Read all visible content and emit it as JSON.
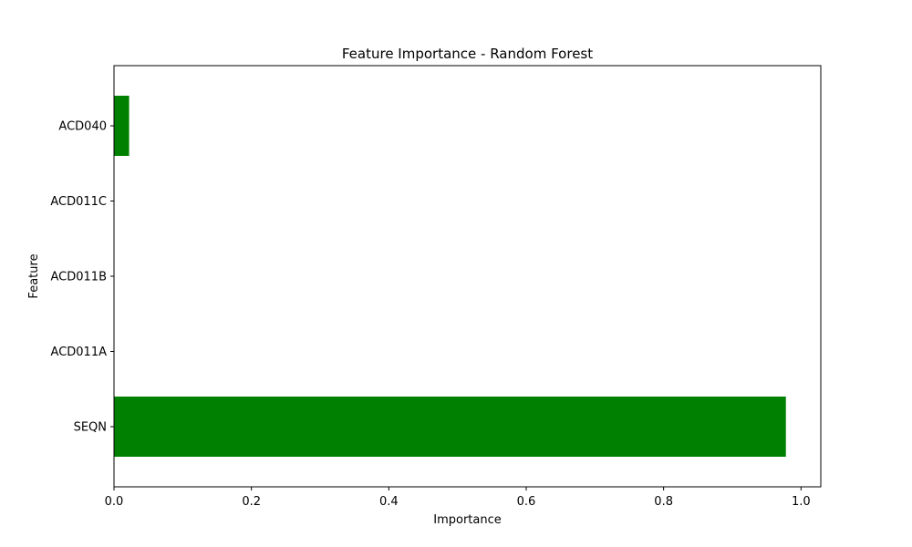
{
  "chart_data": {
    "type": "bar",
    "orientation": "horizontal",
    "title": "Feature Importance - Random Forest",
    "xlabel": "Importance",
    "ylabel": "Feature",
    "categories": [
      "SEQN",
      "ACD011A",
      "ACD011B",
      "ACD011C",
      "ACD040"
    ],
    "values": [
      0.978,
      0.0,
      0.0,
      0.0,
      0.022
    ],
    "xlim": [
      0,
      1.0288
    ],
    "xticks": [
      0.0,
      0.2,
      0.4,
      0.6,
      0.8,
      1.0
    ],
    "xtick_labels": [
      "0.0",
      "0.2",
      "0.4",
      "0.6",
      "0.8",
      "1.0"
    ],
    "bar_color": "#008000",
    "grid": false
  }
}
